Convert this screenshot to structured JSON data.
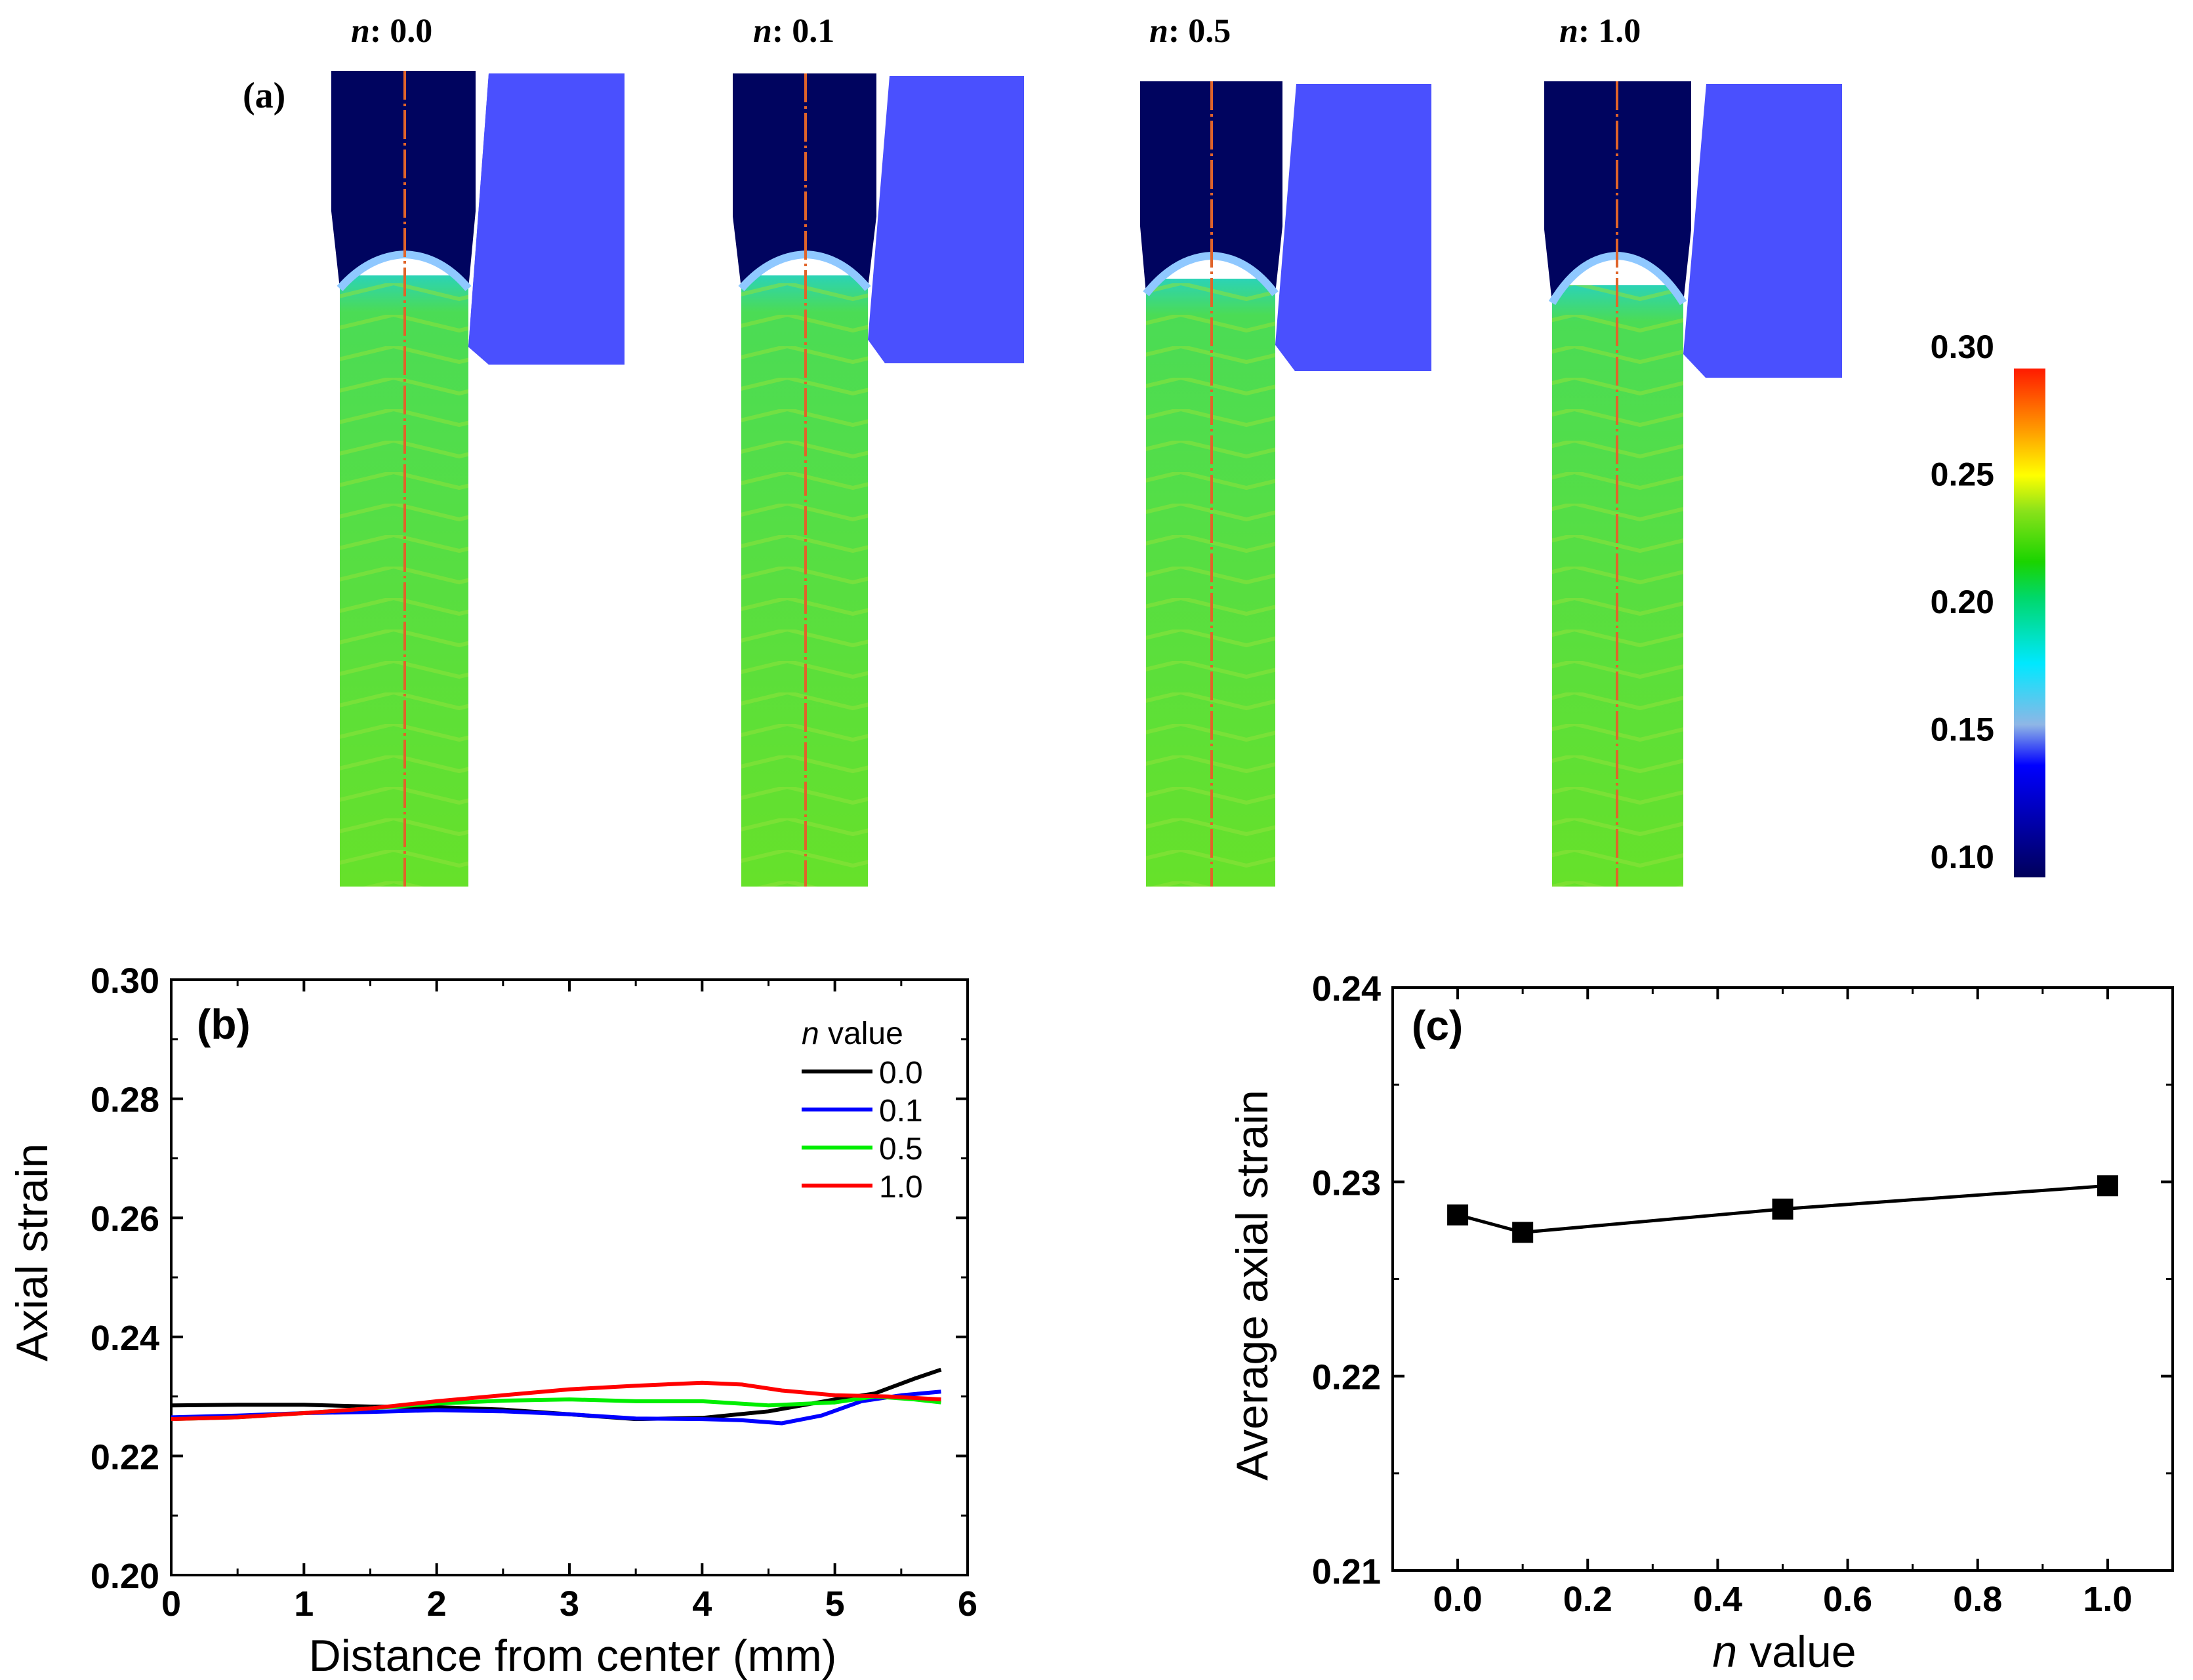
{
  "panel_a": {
    "label": "(a)",
    "n_prefix": "n",
    "sims": [
      {
        "n_text": ": 0.0"
      },
      {
        "n_text": ": 0.1"
      },
      {
        "n_text": ": 0.5"
      },
      {
        "n_text": ": 1.0"
      }
    ],
    "colorbar": {
      "ticks": [
        "0.30",
        "0.25",
        "0.20",
        "0.15",
        "0.10"
      ],
      "min": 0.1,
      "max": 0.3
    },
    "colors": {
      "rod_lower": "#5ee12a",
      "rod_upper": "#00045f",
      "die": "#4a50fe",
      "centerline": "#e0642a"
    }
  },
  "chart_data": [
    {
      "type": "line",
      "panel_label": "(b)",
      "xlabel": "Distance from center (mm)",
      "ylabel": "Axial strain",
      "xlim": [
        0,
        6
      ],
      "ylim": [
        0.2,
        0.3
      ],
      "xticks": [
        "0",
        "1",
        "2",
        "3",
        "4",
        "5",
        "6"
      ],
      "yticks": [
        "0.20",
        "0.22",
        "0.24",
        "0.26",
        "0.28",
        "0.30"
      ],
      "legend_title_italic": "n",
      "legend_title_rest": " value",
      "legend_position": "top-right",
      "series": [
        {
          "name": "0.0",
          "color": "#000000",
          "x": [
            0,
            0.5,
            1.0,
            1.5,
            2.0,
            2.5,
            3.0,
            3.5,
            4.0,
            4.5,
            5.0,
            5.3,
            5.6,
            5.8
          ],
          "y": [
            0.2285,
            0.2286,
            0.2286,
            0.2283,
            0.2282,
            0.2278,
            0.227,
            0.2262,
            0.2264,
            0.2275,
            0.2295,
            0.2305,
            0.233,
            0.2345
          ]
        },
        {
          "name": "0.1",
          "color": "#0000ff",
          "x": [
            0,
            0.5,
            1.0,
            1.5,
            2.0,
            2.5,
            3.0,
            3.5,
            4.0,
            4.3,
            4.6,
            4.9,
            5.2,
            5.5,
            5.8
          ],
          "y": [
            0.2265,
            0.2268,
            0.2272,
            0.2274,
            0.2277,
            0.2275,
            0.227,
            0.2263,
            0.2262,
            0.226,
            0.2255,
            0.2268,
            0.2292,
            0.2302,
            0.2308
          ]
        },
        {
          "name": "0.5",
          "color": "#00ee00",
          "x": [
            0,
            0.5,
            1.0,
            1.5,
            2.0,
            2.5,
            3.0,
            3.5,
            4.0,
            4.5,
            5.0,
            5.3,
            5.6,
            5.8
          ],
          "y": [
            0.2262,
            0.2265,
            0.2272,
            0.228,
            0.2288,
            0.2293,
            0.2295,
            0.2292,
            0.2292,
            0.2285,
            0.229,
            0.23,
            0.2295,
            0.229
          ]
        },
        {
          "name": "1.0",
          "color": "#ff0000",
          "x": [
            0,
            0.5,
            1.0,
            1.5,
            2.0,
            2.5,
            3.0,
            3.5,
            4.0,
            4.3,
            4.6,
            5.0,
            5.4,
            5.8
          ],
          "y": [
            0.2262,
            0.2265,
            0.2272,
            0.228,
            0.2292,
            0.2302,
            0.2312,
            0.2318,
            0.2323,
            0.232,
            0.231,
            0.2302,
            0.23,
            0.2295
          ]
        }
      ]
    },
    {
      "type": "line",
      "panel_label": "(c)",
      "xlabel_italic": "n",
      "xlabel_rest": " value",
      "ylabel": "Average axial strain",
      "xlim": [
        -0.1,
        1.1
      ],
      "ylim": [
        0.21,
        0.24
      ],
      "xticks": [
        "0.0",
        "0.2",
        "0.4",
        "0.6",
        "0.8",
        "1.0"
      ],
      "yticks": [
        "0.21",
        "0.22",
        "0.23",
        "0.24"
      ],
      "marker": "square",
      "series": [
        {
          "color": "#000000",
          "x": [
            0.0,
            0.1,
            0.5,
            1.0
          ],
          "y": [
            0.2283,
            0.2274,
            0.2286,
            0.2298
          ]
        }
      ]
    }
  ]
}
